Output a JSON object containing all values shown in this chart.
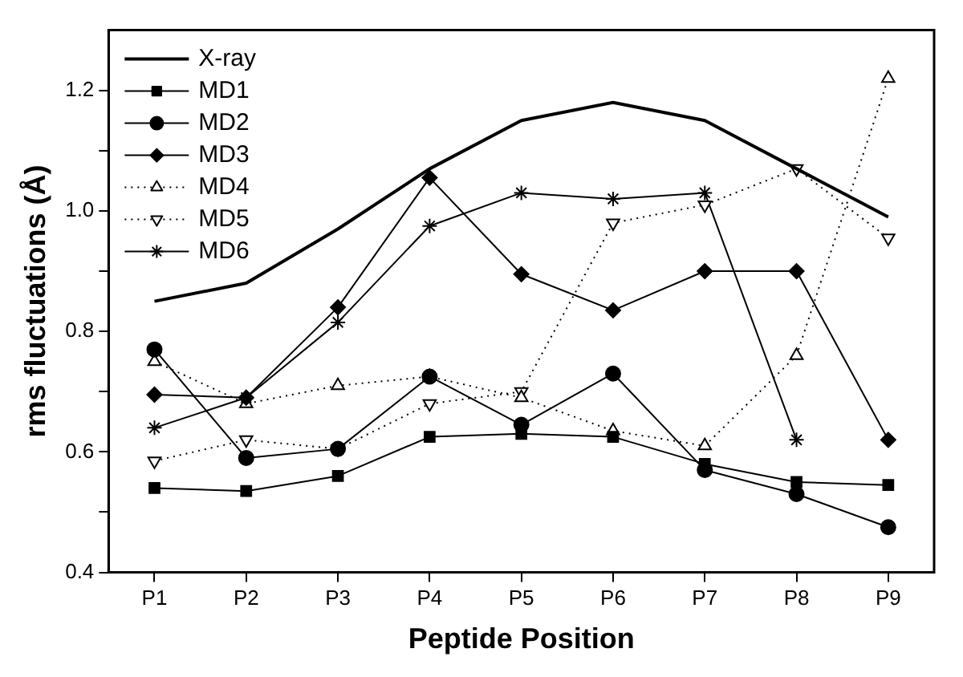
{
  "chart_data": {
    "type": "line",
    "xlabel": "Peptide Position",
    "ylabel": "rms fluctuations (Å)",
    "categories": [
      "P1",
      "P2",
      "P3",
      "P4",
      "P5",
      "P6",
      "P7",
      "P8",
      "P9"
    ],
    "ylim": [
      0.4,
      1.3
    ],
    "yticks": [
      0.4,
      {
        "value": 0.5,
        "label": null
      },
      0.6,
      {
        "value": 0.7,
        "label": null
      },
      0.8,
      {
        "value": 0.9,
        "label": null
      },
      {
        "value": 1.0,
        "label": "1.0"
      },
      {
        "value": 1.1,
        "label": null
      },
      1.2
    ],
    "grid": false,
    "legend": "top left",
    "series": [
      {
        "name": "X-ray",
        "color": "#000000",
        "marker": "none",
        "line_style": "solid",
        "values": [
          0.85,
          0.88,
          0.97,
          1.07,
          1.15,
          1.18,
          1.15,
          1.07,
          0.99
        ]
      },
      {
        "name": "MD1",
        "color": "#000000",
        "marker": "square",
        "line_style": "solid",
        "values": [
          0.54,
          0.535,
          0.56,
          0.625,
          0.63,
          0.625,
          0.58,
          0.55,
          0.545
        ]
      },
      {
        "name": "MD2",
        "color": "#000000",
        "marker": "circle",
        "line_style": "solid",
        "values": [
          0.77,
          0.59,
          0.605,
          0.725,
          0.645,
          0.73,
          0.57,
          0.53,
          0.475
        ]
      },
      {
        "name": "MD3",
        "color": "#000000",
        "marker": "diamond",
        "line_style": "solid",
        "values": [
          0.695,
          0.69,
          0.84,
          1.055,
          0.895,
          0.835,
          0.9,
          0.9,
          0.62
        ]
      },
      {
        "name": "MD4",
        "color": "#000000",
        "marker": "triangle",
        "line_style": "dotted",
        "values": [
          0.75,
          0.68,
          0.71,
          0.725,
          0.69,
          0.635,
          0.61,
          0.76,
          1.22
        ]
      },
      {
        "name": "MD5",
        "color": "#000000",
        "marker": "triangle-down",
        "line_style": "dotted",
        "values": [
          0.585,
          0.62,
          0.605,
          0.68,
          0.7,
          0.98,
          1.01,
          1.07,
          0.955
        ]
      },
      {
        "name": "MD6",
        "color": "#000000",
        "marker": "cross",
        "line_style": "solid",
        "values": [
          0.64,
          0.69,
          0.815,
          0.975,
          1.03,
          1.02,
          1.03,
          0.62,
          null
        ]
      }
    ]
  }
}
